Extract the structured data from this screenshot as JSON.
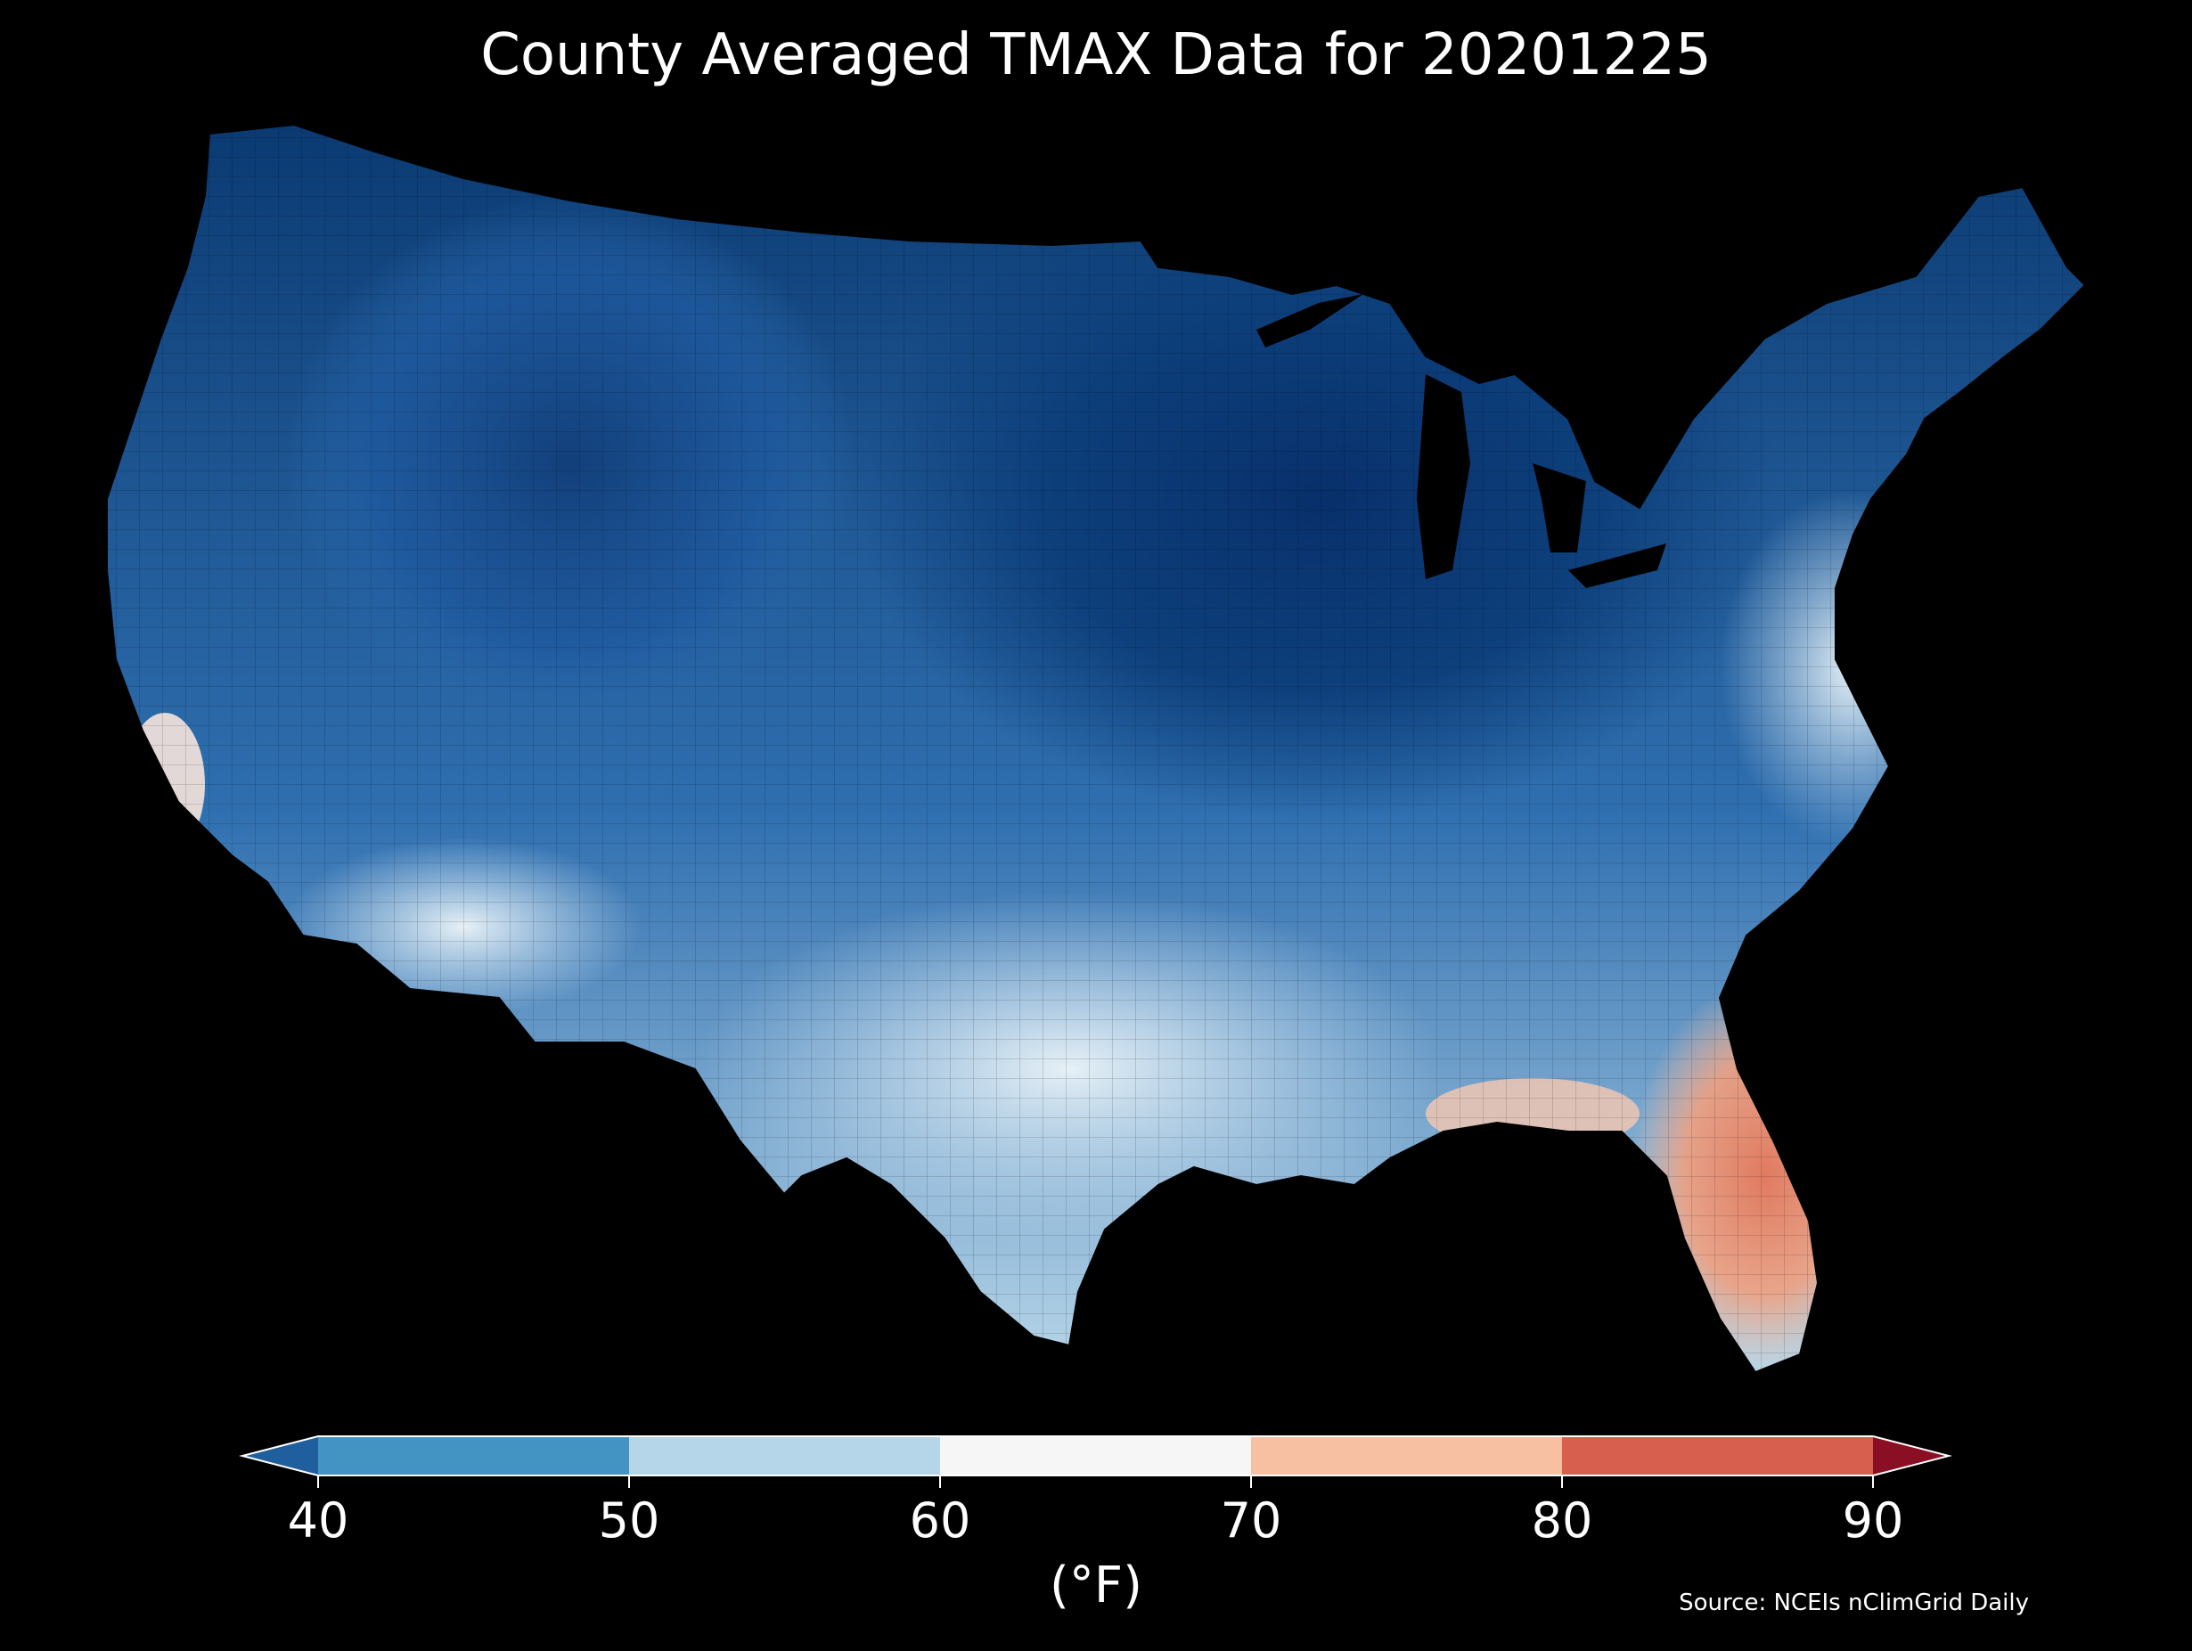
{
  "title": "County Averaged TMAX Data for 20201225",
  "colorbar": {
    "unit_label": "(°F)",
    "ticks": [
      "40",
      "50",
      "60",
      "70",
      "80",
      "90"
    ],
    "bins": [
      {
        "from": 40,
        "to": 50,
        "color": "#4393c3"
      },
      {
        "from": 50,
        "to": 60,
        "color": "#b5d6e9"
      },
      {
        "from": 60,
        "to": 70,
        "color": "#f6f6f6"
      },
      {
        "from": 70,
        "to": 80,
        "color": "#f8c0a3"
      },
      {
        "from": 80,
        "to": 90,
        "color": "#d6604d"
      }
    ],
    "under_color": "#1f5f9e",
    "over_color": "#8a0f25"
  },
  "source": "Source: NCEIs nClimGrid Daily"
}
